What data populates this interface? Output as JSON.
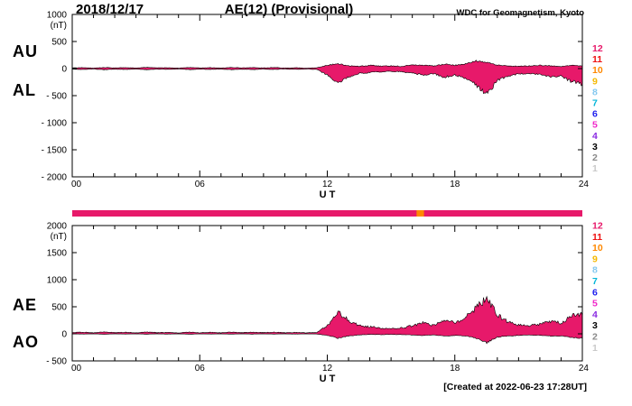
{
  "header": {
    "date": "2018/12/17",
    "title": "AE(12) (Provisional)",
    "source": "WDC for Geomagnetism, Kyoto"
  },
  "footer": {
    "created": "[Created at 2022-06-23 17:28UT]"
  },
  "colors": {
    "fill": "#e7196a",
    "axis": "#000000"
  },
  "station_legend": [
    {
      "n": "12",
      "color": "#e7196a"
    },
    {
      "n": "11",
      "color": "#ee1111"
    },
    {
      "n": "10",
      "color": "#ff8800"
    },
    {
      "n": "9",
      "color": "#f5b800"
    },
    {
      "n": "8",
      "color": "#85c8ef"
    },
    {
      "n": "7",
      "color": "#00b5d8"
    },
    {
      "n": "6",
      "color": "#2020ee"
    },
    {
      "n": "5",
      "color": "#f026c9"
    },
    {
      "n": "4",
      "color": "#8a2be2"
    },
    {
      "n": "3",
      "color": "#000000"
    },
    {
      "n": "2",
      "color": "#8a8a8a"
    },
    {
      "n": "1",
      "color": "#c9c9c9"
    }
  ],
  "chart_data": {
    "type": "area",
    "xlabel": "U T",
    "x_start": 0,
    "x_step": 0.5,
    "xlim": [
      0,
      24
    ],
    "xticks": [
      {
        "v": 0,
        "label": "00"
      },
      {
        "v": 6,
        "label": "06"
      },
      {
        "v": 12,
        "label": "12"
      },
      {
        "v": 18,
        "label": "18"
      },
      {
        "v": 24,
        "label": "24"
      }
    ],
    "panels": [
      {
        "left_labels": [
          "AU",
          "AL"
        ],
        "unit": "(nT)",
        "ylim": [
          -2000,
          1000
        ],
        "yticks": [
          {
            "v": 1000,
            "label": "1000"
          },
          {
            "v": 500,
            "label": "500"
          },
          {
            "v": 0,
            "label": "0"
          },
          {
            "v": -500,
            "label": "- 500"
          },
          {
            "v": -1000,
            "label": "- 1000"
          },
          {
            "v": -1500,
            "label": "- 1500"
          },
          {
            "v": -2000,
            "label": "- 2000"
          }
        ],
        "series": [
          {
            "name": "AU",
            "values": [
              12,
              18,
              9,
              20,
              13,
              17,
              10,
              22,
              14,
              16,
              9,
              19,
              11,
              17,
              10,
              20,
              13,
              18,
              12,
              21,
              10,
              16,
              8,
              14,
              60,
              90,
              50,
              40,
              60,
              45,
              50,
              40,
              70,
              60,
              50,
              80,
              60,
              90,
              140,
              120,
              60,
              50,
              40,
              50,
              60,
              50,
              40,
              60,
              50
            ]
          },
          {
            "name": "AL",
            "values": [
              -10,
              -17,
              -8,
              -21,
              -12,
              -16,
              -9,
              -20,
              -11,
              -15,
              -8,
              -19,
              -10,
              -16,
              -9,
              -21,
              -12,
              -18,
              -10,
              -16,
              -8,
              -14,
              -9,
              -15,
              -120,
              -260,
              -160,
              -90,
              -70,
              -60,
              -50,
              -60,
              -80,
              -120,
              -90,
              -160,
              -120,
              -180,
              -300,
              -480,
              -220,
              -140,
              -100,
              -90,
              -110,
              -160,
              -140,
              -240,
              -290
            ]
          }
        ]
      },
      {
        "left_labels": [
          "AE",
          "AO"
        ],
        "unit": "(nT)",
        "ylim": [
          -500,
          2000
        ],
        "yticks": [
          {
            "v": 2000,
            "label": "2000"
          },
          {
            "v": 1500,
            "label": "1500"
          },
          {
            "v": 1000,
            "label": "1000"
          },
          {
            "v": 500,
            "label": "500"
          },
          {
            "v": 0,
            "label": "0"
          },
          {
            "v": -500,
            "label": "- 500"
          }
        ],
        "series": [
          {
            "name": "AE",
            "values": [
              22,
              30,
              18,
              34,
              22,
              28,
              20,
              32,
              24,
              26,
              18,
              30,
              21,
              27,
              20,
              33,
              23,
              28,
              22,
              31,
              20,
              26,
              18,
              24,
              150,
              400,
              250,
              150,
              130,
              110,
              100,
              110,
              150,
              200,
              150,
              260,
              200,
              300,
              480,
              680,
              350,
              220,
              160,
              150,
              180,
              230,
              200,
              330,
              380
            ]
          },
          {
            "name": "AO",
            "values": [
              2,
              -5,
              3,
              -8,
              2,
              -4,
              1,
              -6,
              3,
              -5,
              2,
              -7,
              1,
              -4,
              2,
              -6,
              3,
              -5,
              1,
              -4,
              2,
              -5,
              1,
              -3,
              -30,
              -80,
              -40,
              -20,
              -10,
              -15,
              -10,
              -15,
              -20,
              -30,
              -20,
              -40,
              -30,
              -40,
              -80,
              -160,
              -60,
              -40,
              -30,
              -20,
              -30,
              -40,
              -40,
              -70,
              -80
            ]
          }
        ]
      }
    ],
    "availability_bar": {
      "segments": [
        {
          "from": 0,
          "to": 24,
          "color": "#e7196a"
        },
        {
          "from": 16.2,
          "to": 16.55,
          "color": "#ff8800"
        }
      ]
    }
  }
}
